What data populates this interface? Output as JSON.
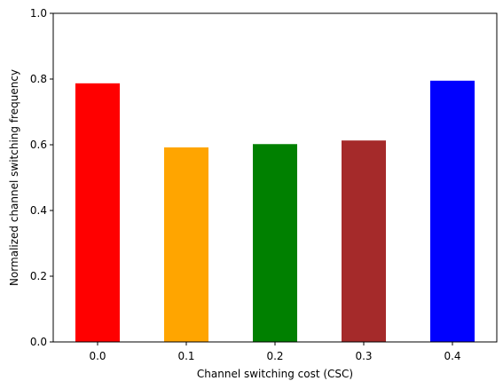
{
  "chart_data": {
    "type": "bar",
    "categories": [
      "0.0",
      "0.1",
      "0.2",
      "0.3",
      "0.4"
    ],
    "values": [
      0.787,
      0.592,
      0.602,
      0.613,
      0.795
    ],
    "colors": [
      "#ff0000",
      "#ffa500",
      "#008000",
      "#a52a2a",
      "#0000ff"
    ],
    "xlabel": "Channel switching cost (CSC)",
    "ylabel": "Normalized channel switching frequency",
    "ylim": [
      0,
      1.0
    ],
    "yticks": [
      "0.0",
      "0.2",
      "0.4",
      "0.6",
      "0.8",
      "1.0"
    ],
    "grid": false
  }
}
